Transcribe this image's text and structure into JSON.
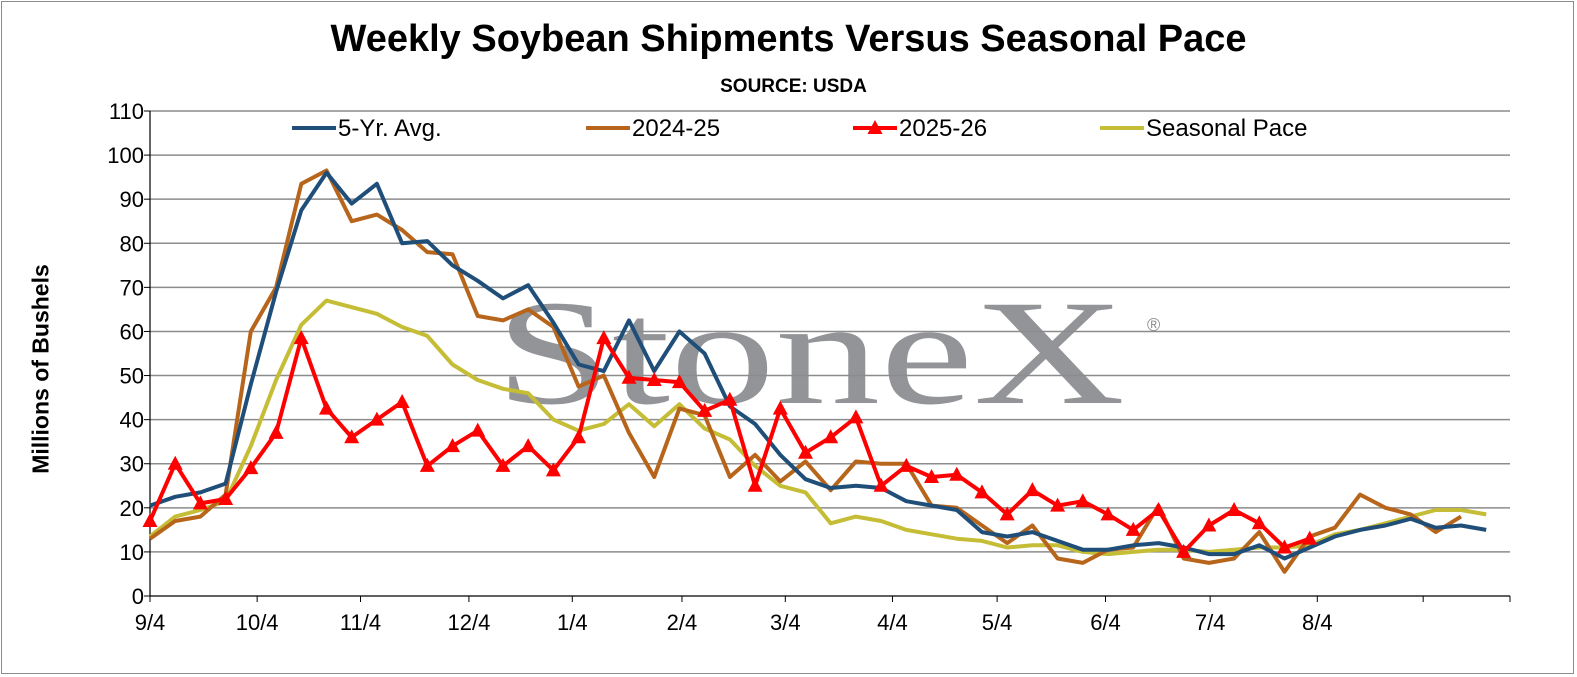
{
  "chart_data": {
    "type": "line",
    "title": "Weekly Soybean Shipments Versus Seasonal Pace",
    "subtitle": "SOURCE: USDA",
    "ylabel": "Millions of Bushels",
    "xlabel": "",
    "ylim": [
      0,
      110
    ],
    "yticks": [
      0,
      10,
      20,
      30,
      40,
      50,
      60,
      70,
      80,
      90,
      100,
      110
    ],
    "xtick_labels": [
      "9/4",
      "10/4",
      "11/4",
      "12/4",
      "1/4",
      "2/4",
      "3/4",
      "4/4",
      "5/4",
      "6/4",
      "7/4",
      "8/4"
    ],
    "watermark": "StoneX",
    "watermark_mark": "®",
    "legend_position": "top",
    "grid": true,
    "series": [
      {
        "name": "5-Yr. Avg.",
        "color": "#1f4e79",
        "marker": "none",
        "values": [
          20.5,
          22.5,
          23.5,
          25.5,
          48,
          69,
          87.5,
          96,
          89,
          93.5,
          80,
          80.5,
          75,
          71.5,
          67.5,
          70.5,
          62,
          52.5,
          51,
          62.5,
          51,
          60,
          55,
          43,
          39,
          32,
          26.5,
          24.5,
          25,
          24.5,
          21.5,
          20.5,
          19.5,
          14.5,
          13.5,
          14.5,
          12.5,
          10.5,
          10.5,
          11.5,
          12,
          11,
          9.5,
          9.5,
          11.5,
          8.5,
          11,
          13.5,
          15,
          16,
          17.5,
          15.5,
          16,
          15
        ]
      },
      {
        "name": "2024-25",
        "color": "#b8651c",
        "marker": "none",
        "values": [
          13,
          17,
          18,
          23,
          60,
          70,
          93.5,
          96.5,
          85,
          86.5,
          83,
          78,
          77.5,
          63.5,
          62.5,
          65,
          61,
          47.5,
          50,
          37,
          27,
          42.5,
          41,
          27,
          32,
          26,
          30.5,
          24,
          30.5,
          30,
          30,
          20.5,
          20,
          16,
          12,
          16,
          8.5,
          7.5,
          10.5,
          11,
          20.5,
          8.5,
          7.5,
          8.5,
          14.5,
          5.5,
          13.5,
          15.5,
          23,
          20,
          18.5,
          14.5,
          18
        ]
      },
      {
        "name": "2025-26",
        "color": "#ff0000",
        "marker": "triangle",
        "values": [
          17,
          30,
          21,
          22,
          29,
          37,
          58.5,
          42.5,
          36,
          40,
          44,
          29.5,
          34,
          37.5,
          29.5,
          34,
          28.5,
          36,
          58.5,
          49.5,
          49,
          48.5,
          42,
          44.5,
          25,
          42.5,
          32.5,
          36,
          40.5,
          25,
          29.5,
          27,
          27.5,
          23.5,
          18.5,
          24,
          20.5,
          21.5,
          18.5,
          15,
          19.5,
          10,
          16,
          19.5,
          16.5,
          11,
          13
        ]
      },
      {
        "name": "Seasonal Pace",
        "color": "#c4bd35",
        "marker": "none",
        "values": [
          13.5,
          18,
          19.5,
          21.5,
          34,
          49,
          61.5,
          67,
          65.5,
          64,
          61,
          59,
          52.5,
          49,
          47,
          46,
          40,
          37.5,
          39,
          43.5,
          38.5,
          43.5,
          38,
          35.5,
          29.5,
          25,
          23.5,
          16.5,
          18,
          17,
          15,
          14,
          13,
          12.5,
          11,
          11.5,
          11.5,
          10,
          9.5,
          10,
          10.5,
          10.5,
          10,
          10.5,
          11,
          11,
          11.5,
          14,
          15,
          16.5,
          18,
          19.5,
          19.5,
          18.5
        ]
      }
    ]
  }
}
